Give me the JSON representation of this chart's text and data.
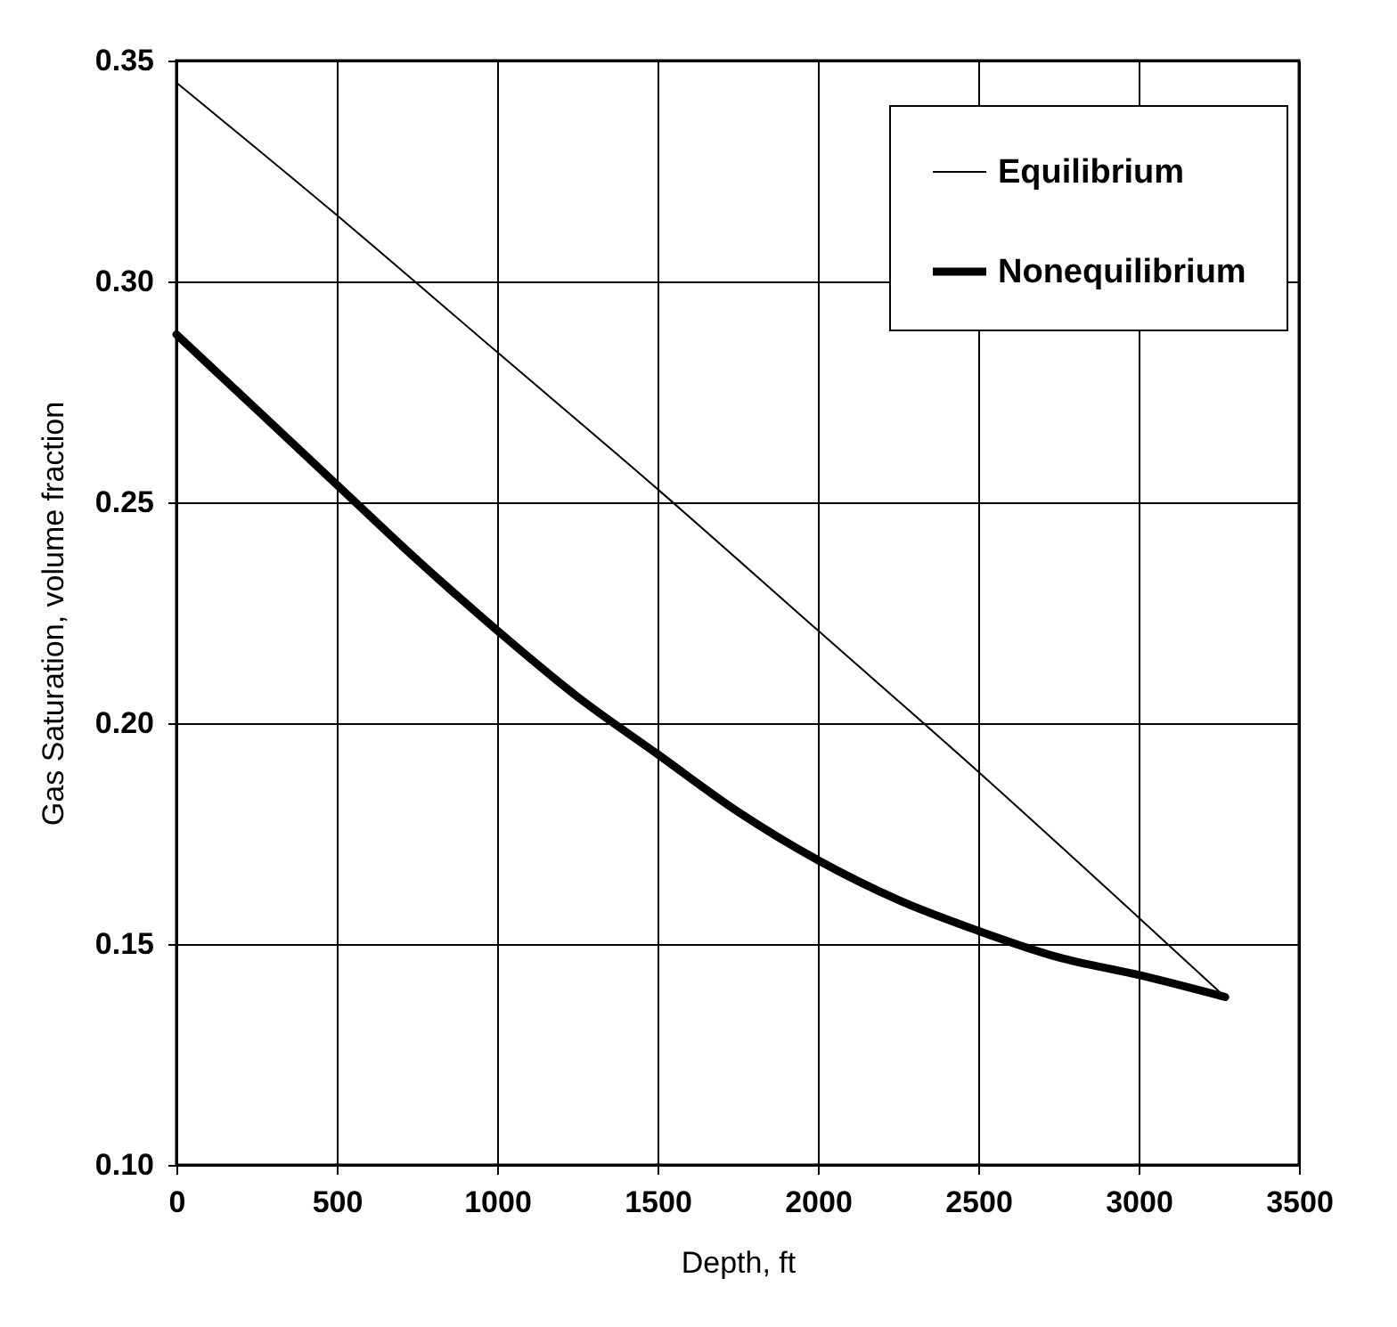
{
  "chart_data": {
    "type": "line",
    "xlabel": "Depth, ft",
    "ylabel": "Gas Saturation, volume fraction",
    "xlim": [
      0,
      3500
    ],
    "xticks": [
      0,
      500,
      1000,
      1500,
      2000,
      2500,
      3000,
      3500
    ],
    "ylim": [
      0.1,
      0.35
    ],
    "yticks": [
      {
        "value": 0.1,
        "label": "0.10"
      },
      {
        "value": 0.15,
        "label": "0.15"
      },
      {
        "value": 0.2,
        "label": "0.20"
      },
      {
        "value": 0.25,
        "label": "0.25"
      },
      {
        "value": 0.3,
        "label": "0.30"
      },
      {
        "value": 0.35,
        "label": "0.35"
      }
    ],
    "grid": true,
    "legend": "top right",
    "marker": "none",
    "line_style": "solid",
    "series": [
      {
        "name": "Equilibrium",
        "color": "#000000",
        "x": [
          0,
          500,
          1000,
          1500,
          2000,
          2500,
          3000,
          3270
        ],
        "values": [
          0.345,
          0.315,
          0.284,
          0.253,
          0.221,
          0.189,
          0.156,
          0.138
        ]
      },
      {
        "name": "Nonequilibrium",
        "color": "#000000",
        "x": [
          0,
          250,
          500,
          750,
          1000,
          1250,
          1500,
          1750,
          2000,
          2250,
          2500,
          2750,
          3000,
          3270
        ],
        "values": [
          0.288,
          0.271,
          0.254,
          0.237,
          0.221,
          0.206,
          0.193,
          0.18,
          0.169,
          0.16,
          0.153,
          0.147,
          0.143,
          0.138
        ]
      }
    ]
  }
}
